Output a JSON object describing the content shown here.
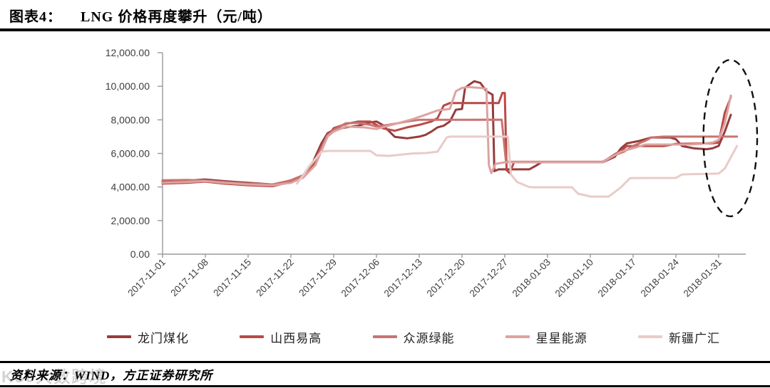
{
  "header": {
    "figure_label": "图表4：",
    "title": "LNG 价格再度攀升（元/吨）"
  },
  "footer": {
    "source": "资料来源：WIND，方正证券研究所",
    "watermark": "K30大数跨境"
  },
  "chart_data": {
    "type": "line",
    "title": "LNG 价格再度攀升（元/吨）",
    "unit": "元/吨",
    "legend_position": "bottom",
    "grid": false,
    "x_axis": {
      "tick_spacing_days": 7,
      "tick_labels": [
        "2017-11-01",
        "2017-11-08",
        "2017-11-15",
        "2017-11-22",
        "2017-11-29",
        "2017-12-06",
        "2017-12-13",
        "2017-12-20",
        "2017-12-27",
        "2018-01-03",
        "2018-01-10",
        "2018-01-17",
        "2018-01-24",
        "2018-01-31"
      ]
    },
    "y_axis": {
      "min": 0,
      "max": 12000,
      "tick_step": 2000,
      "tick_labels": [
        "0.00",
        "2,000.00",
        "4,000.00",
        "6,000.00",
        "8,000.00",
        "10,000.00",
        "12,000.00"
      ]
    },
    "series": [
      {
        "id": "longmen",
        "name": "龙门煤化",
        "color": "#963C3C",
        "points": [
          [
            0,
            4300
          ],
          [
            4,
            4380
          ],
          [
            7,
            4450
          ],
          [
            10,
            4350
          ],
          [
            14,
            4250
          ],
          [
            18,
            4150
          ],
          [
            21,
            4300
          ],
          [
            23,
            4600
          ],
          [
            24,
            5000
          ],
          [
            25,
            5800
          ],
          [
            26,
            6600
          ],
          [
            27,
            7200
          ],
          [
            28,
            7400
          ],
          [
            30,
            7550
          ],
          [
            32,
            7650
          ],
          [
            34,
            7850
          ],
          [
            35,
            7900
          ],
          [
            36,
            7700
          ],
          [
            37,
            7350
          ],
          [
            38,
            6990
          ],
          [
            40,
            6900
          ],
          [
            42,
            7000
          ],
          [
            43,
            7100
          ],
          [
            44,
            7300
          ],
          [
            45,
            7550
          ],
          [
            46,
            7650
          ],
          [
            47,
            7900
          ],
          [
            48,
            8600
          ],
          [
            49,
            8650
          ],
          [
            49.5,
            9900
          ],
          [
            50,
            10050
          ],
          [
            51,
            10300
          ],
          [
            52,
            10200
          ],
          [
            53,
            9700
          ],
          [
            54,
            9500
          ],
          [
            54.3,
            4950
          ],
          [
            55,
            5050
          ],
          [
            60,
            5050
          ],
          [
            61,
            5250
          ],
          [
            62,
            5470
          ],
          [
            72,
            5470
          ],
          [
            74,
            5800
          ],
          [
            75,
            6300
          ],
          [
            76,
            6600
          ],
          [
            78,
            6740
          ],
          [
            80,
            6950
          ],
          [
            83,
            6950
          ],
          [
            84,
            6850
          ],
          [
            85,
            6440
          ],
          [
            87,
            6300
          ],
          [
            89,
            6250
          ],
          [
            90,
            6300
          ],
          [
            91,
            6450
          ],
          [
            92,
            7300
          ],
          [
            93,
            8300
          ]
        ]
      },
      {
        "id": "shanxi",
        "name": "山西易高",
        "color": "#BA4A47",
        "points": [
          [
            0,
            4200
          ],
          [
            4,
            4250
          ],
          [
            7,
            4320
          ],
          [
            10,
            4200
          ],
          [
            14,
            4100
          ],
          [
            18,
            4050
          ],
          [
            21,
            4300
          ],
          [
            23,
            4600
          ],
          [
            25,
            5500
          ],
          [
            27,
            7000
          ],
          [
            28,
            7500
          ],
          [
            30,
            7750
          ],
          [
            32,
            7900
          ],
          [
            34,
            7900
          ],
          [
            36,
            7500
          ],
          [
            38,
            7350
          ],
          [
            40,
            7550
          ],
          [
            42,
            7700
          ],
          [
            44,
            7900
          ],
          [
            45,
            8100
          ],
          [
            46,
            8850
          ],
          [
            47,
            9000
          ],
          [
            55,
            9000
          ],
          [
            55.6,
            9600
          ],
          [
            56,
            9600
          ],
          [
            56.3,
            5000
          ],
          [
            56.8,
            4830
          ],
          [
            57.5,
            5470
          ],
          [
            72,
            5470
          ],
          [
            74,
            5950
          ],
          [
            75,
            6150
          ],
          [
            76,
            6440
          ],
          [
            82,
            6440
          ],
          [
            84,
            6570
          ],
          [
            90,
            6600
          ],
          [
            91,
            6650
          ],
          [
            92,
            8430
          ],
          [
            93,
            9350
          ]
        ]
      },
      {
        "id": "zhongyuan",
        "name": "众源绿能",
        "color": "#C97370",
        "points": [
          [
            0,
            4400
          ],
          [
            4,
            4420
          ],
          [
            7,
            4380
          ],
          [
            10,
            4300
          ],
          [
            14,
            4200
          ],
          [
            18,
            4150
          ],
          [
            21,
            4400
          ],
          [
            23,
            4700
          ],
          [
            25,
            5600
          ],
          [
            27,
            7100
          ],
          [
            28,
            7400
          ],
          [
            30,
            7800
          ],
          [
            32,
            7820
          ],
          [
            34,
            7700
          ],
          [
            35,
            7600
          ],
          [
            37,
            7700
          ],
          [
            40,
            7900
          ],
          [
            42,
            8000
          ],
          [
            55.5,
            8010
          ],
          [
            56.2,
            5500
          ],
          [
            72,
            5500
          ],
          [
            74,
            5900
          ],
          [
            75.5,
            6100
          ],
          [
            77,
            6450
          ],
          [
            79,
            6750
          ],
          [
            80,
            6950
          ],
          [
            82,
            7000
          ],
          [
            94,
            7000
          ]
        ]
      },
      {
        "id": "xingxing",
        "name": "星星能源",
        "color": "#DCA3A1",
        "points": [
          [
            0,
            4250
          ],
          [
            4,
            4300
          ],
          [
            7,
            4350
          ],
          [
            10,
            4250
          ],
          [
            14,
            4150
          ],
          [
            18,
            4100
          ],
          [
            21,
            4250
          ],
          [
            23,
            4550
          ],
          [
            25,
            5300
          ],
          [
            27,
            7000
          ],
          [
            28,
            7300
          ],
          [
            30,
            7600
          ],
          [
            33,
            7550
          ],
          [
            35,
            7450
          ],
          [
            37,
            7650
          ],
          [
            39,
            7850
          ],
          [
            41,
            8050
          ],
          [
            43,
            8300
          ],
          [
            45,
            8560
          ],
          [
            47,
            8650
          ],
          [
            48,
            9700
          ],
          [
            49,
            9900
          ],
          [
            50,
            9950
          ],
          [
            52,
            9900
          ],
          [
            53,
            9850
          ],
          [
            53.4,
            5300
          ],
          [
            53.8,
            4830
          ],
          [
            54.5,
            5380
          ],
          [
            56,
            5470
          ],
          [
            72,
            5470
          ],
          [
            74,
            5900
          ],
          [
            75,
            6100
          ],
          [
            77,
            6310
          ],
          [
            79,
            6530
          ],
          [
            86,
            6530
          ],
          [
            88,
            6570
          ],
          [
            90,
            6650
          ],
          [
            91,
            6800
          ],
          [
            92,
            7800
          ],
          [
            93,
            9450
          ]
        ]
      },
      {
        "id": "xinjiang",
        "name": "新疆广汇",
        "color": "#E9CBC8",
        "points": [
          [
            22,
            4200
          ],
          [
            23,
            4700
          ],
          [
            24,
            5250
          ],
          [
            26,
            6100
          ],
          [
            27,
            6150
          ],
          [
            34,
            6150
          ],
          [
            35,
            5890
          ],
          [
            37,
            5850
          ],
          [
            39,
            5930
          ],
          [
            41,
            6000
          ],
          [
            43,
            6020
          ],
          [
            45,
            6100
          ],
          [
            46.5,
            6950
          ],
          [
            47,
            7000
          ],
          [
            56.5,
            7000
          ],
          [
            57,
            4750
          ],
          [
            58,
            4300
          ],
          [
            60,
            4000
          ],
          [
            61,
            3980
          ],
          [
            67,
            3980
          ],
          [
            68,
            3600
          ],
          [
            69.5,
            3480
          ],
          [
            70,
            3430
          ],
          [
            73,
            3430
          ],
          [
            74,
            3700
          ],
          [
            75,
            3980
          ],
          [
            76.5,
            4530
          ],
          [
            84,
            4540
          ],
          [
            85,
            4750
          ],
          [
            91,
            4800
          ],
          [
            92,
            5100
          ],
          [
            94,
            6450
          ]
        ]
      }
    ],
    "annotation": {
      "shape": "dashed-ellipse",
      "day": 92.9,
      "value": 6911,
      "day_radius": 4.4,
      "value_radius": 4660,
      "color": "#111111"
    }
  }
}
